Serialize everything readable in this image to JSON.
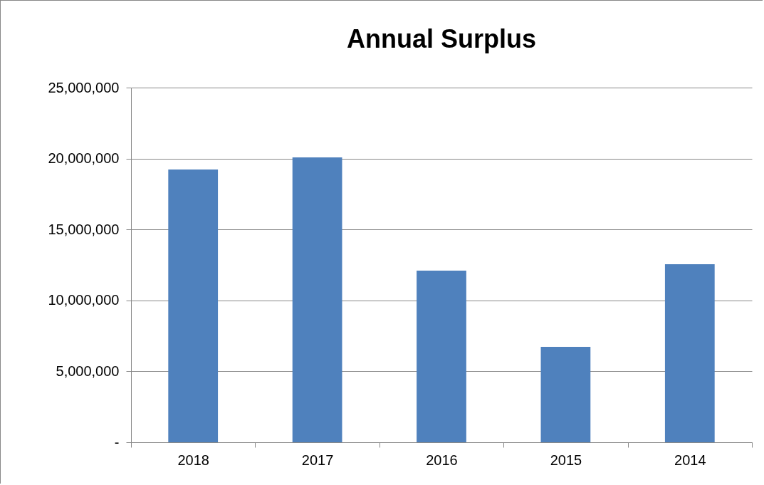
{
  "chart_data": {
    "type": "bar",
    "title": "Annual Surplus",
    "categories": [
      "2018",
      "2017",
      "2016",
      "2015",
      "2014"
    ],
    "values": [
      19230000,
      20080000,
      12100000,
      6730000,
      12550000
    ],
    "color": "#4f81bd",
    "ylim": [
      0,
      25000000
    ],
    "yticks": [
      {
        "value": 0,
        "label": "-"
      },
      {
        "value": 5000000,
        "label": "5,000,000"
      },
      {
        "value": 10000000,
        "label": "10,000,000"
      },
      {
        "value": 15000000,
        "label": "15,000,000"
      },
      {
        "value": 20000000,
        "label": "20,000,000"
      },
      {
        "value": 25000000,
        "label": "25,000,000"
      }
    ],
    "grid": "y",
    "legend": false
  }
}
